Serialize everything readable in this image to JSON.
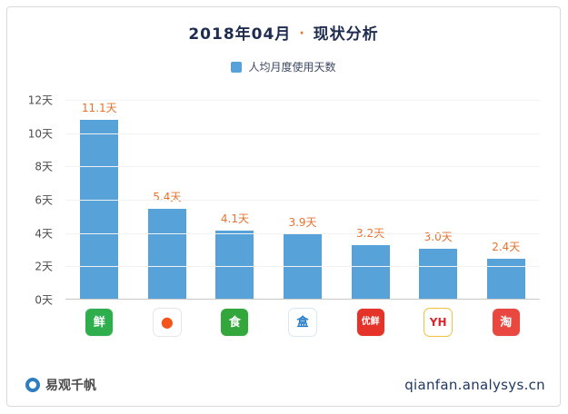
{
  "title": {
    "period": "2018年04月",
    "separator": "·",
    "label": "现状分析"
  },
  "legend": {
    "label": "人均月度使用天数",
    "color": "#57a3d9"
  },
  "chart_data": {
    "type": "bar",
    "title": "2018年04月 · 现状分析",
    "categories": [
      "每日优鲜",
      "多点",
      "食行生鲜",
      "盒马",
      "大润发优鲜",
      "永辉",
      "每日一淘"
    ],
    "values": [
      11.1,
      5.4,
      4.1,
      3.9,
      3.2,
      3.0,
      2.4
    ],
    "value_labels": [
      "11.1天",
      "5.4天",
      "4.1天",
      "3.9天",
      "3.2天",
      "3.0天",
      "2.4天"
    ],
    "xlabel": "",
    "ylabel": "",
    "ylim": [
      0,
      12
    ],
    "yticks": [
      "12天",
      "10天",
      "8天",
      "6天",
      "4天",
      "2天",
      "0天"
    ],
    "grid": "faint-horizontal",
    "legend_position": "top-center",
    "bar_color": "#57a3d9",
    "value_label_color": "#e8722c",
    "apps": [
      {
        "name": "meiriyouxian",
        "label": "每日优鲜",
        "bg": "#2fae4d",
        "fg": "#ffffff",
        "glyph": "鲜",
        "size": "13px"
      },
      {
        "name": "duodian",
        "label": "多点",
        "bg": "#ffffff",
        "fg": "#f2541b",
        "glyph": "●",
        "size": "16px",
        "border": "#e6e6e6"
      },
      {
        "name": "shihangshengxian",
        "label": "食行生鲜",
        "bg": "#33a63c",
        "fg": "#ffffff",
        "glyph": "食",
        "size": "13px"
      },
      {
        "name": "hema",
        "label": "盒马",
        "bg": "#ffffff",
        "fg": "#1e7ac8",
        "glyph": "盒",
        "size": "13px",
        "border": "#d8e7f5"
      },
      {
        "name": "darunfayouxian",
        "label": "大润发优鲜",
        "bg": "#e6332a",
        "fg": "#ffffff",
        "glyph": "优鲜",
        "size": "10px"
      },
      {
        "name": "yonghui",
        "label": "永辉",
        "bg": "#ffffff",
        "fg": "#d8262c",
        "glyph": "YH",
        "size": "12px",
        "border": "#f0c040"
      },
      {
        "name": "meiriyitao",
        "label": "每日一淘",
        "bg": "#e8483f",
        "fg": "#ffffff",
        "glyph": "淘",
        "size": "13px"
      }
    ]
  },
  "footer": {
    "brand": "易观千帆",
    "url": "qianfan.analysys.cn"
  }
}
